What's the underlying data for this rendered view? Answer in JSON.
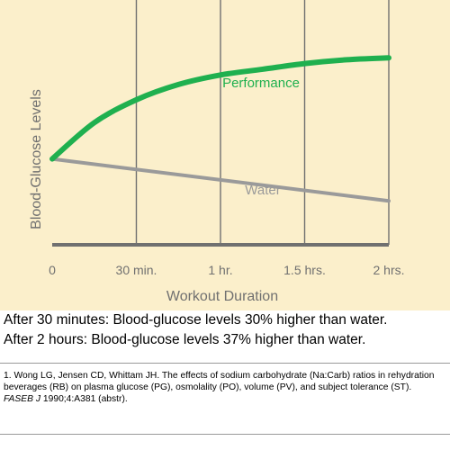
{
  "colors": {
    "background": "#fbefcb",
    "grid": "#707070",
    "axis_text": "#707070",
    "performance": "#1fb04f",
    "water": "#9a9a9a",
    "text": "#000000"
  },
  "chart_data": {
    "type": "line",
    "title": "",
    "xlabel": "Workout Duration",
    "ylabel": "Blood-Glucose Levels",
    "x_tick_labels": [
      "0",
      "30 min.",
      "1 hr.",
      "1.5 hrs.",
      "2 hrs."
    ],
    "x": [
      0,
      30,
      60,
      90,
      120
    ],
    "xlim": [
      0,
      120
    ],
    "ylim": [
      0,
      100
    ],
    "grid": "vertical",
    "y_ticks_shown": false,
    "series": [
      {
        "name": "Performance",
        "color": "#1fb04f",
        "x": [
          0,
          15,
          30,
          45,
          60,
          75,
          90,
          105,
          120
        ],
        "values": [
          45,
          64,
          76,
          84,
          89,
          92,
          95,
          97,
          98
        ]
      },
      {
        "name": "Water",
        "color": "#9a9a9a",
        "x": [
          0,
          120
        ],
        "values": [
          45,
          23
        ]
      }
    ]
  },
  "summary": {
    "line1": "After 30 minutes: Blood-glucose levels 30% higher than water.",
    "line2": "After 2 hours: Blood-glucose levels 37% higher than water."
  },
  "footnote": {
    "text": "1. Wong LG, Jensen CD, Whittam JH. The effects of sodium carbohydrate (Na:Carb) ratios in rehydration beverages (RB) on plasma glucose (PG), osmolality (PO), volume (PV), and subject tolerance (ST).",
    "journal": "FASEB J",
    "citation": "1990;4:A381 (abstr)."
  }
}
